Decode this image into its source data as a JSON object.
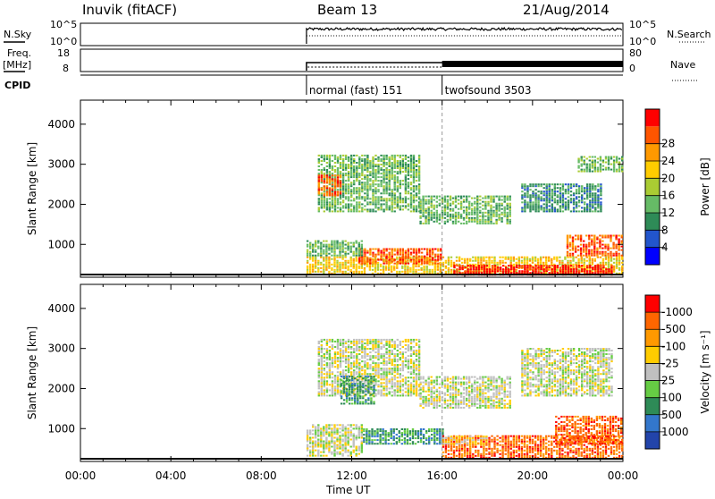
{
  "header": {
    "station": "Inuvik (fitACF)",
    "beam": "Beam 13",
    "date": "21/Aug/2014"
  },
  "status_panels": {
    "nsky_label": "N.Sky",
    "nsky_ticks": [
      "10^5",
      "10^0"
    ],
    "nsearch_label": "N.Search",
    "freq_label_1": "Freq.",
    "freq_label_2": "[MHz]",
    "freq_ticks": [
      "18",
      "8"
    ],
    "nave_ticks": [
      "80",
      "0"
    ],
    "nave_label": "Nave",
    "cpid_label": "CPID",
    "cpid_modes": [
      {
        "name": "normal (fast) 151",
        "start": "10:00"
      },
      {
        "name": "twofsound 3503",
        "start": "16:00"
      }
    ]
  },
  "chart_data": [
    {
      "type": "heatmap",
      "quantity": "Power",
      "ylabel": "Slant Range [km]",
      "ylim": [
        180,
        4600
      ],
      "yticks": [
        1000,
        2000,
        3000,
        4000
      ],
      "x_range_hours": [
        0,
        24
      ],
      "colorbar": {
        "label": "Power [dB]",
        "ticks": [
          "4",
          "8",
          "12",
          "16",
          "20",
          "24",
          "28"
        ],
        "colors": [
          "#0000ff",
          "#2255cc",
          "#2e8b57",
          "#66bb66",
          "#aacc33",
          "#ffcc00",
          "#ff9900",
          "#ff5500",
          "#ff0000"
        ]
      },
      "echo_regions": [
        {
          "t0": 10.0,
          "t1": 24.0,
          "r0": 250,
          "r1": 700,
          "level": 5
        },
        {
          "t0": 16.5,
          "t1": 23.5,
          "r0": 220,
          "r1": 480,
          "level": 8
        },
        {
          "t0": 12.3,
          "t1": 16.0,
          "r0": 500,
          "r1": 900,
          "level": 7
        },
        {
          "t0": 10.0,
          "t1": 12.5,
          "r0": 700,
          "r1": 1100,
          "level": 3
        },
        {
          "t0": 21.5,
          "t1": 24.0,
          "r0": 700,
          "r1": 1200,
          "level": 7
        },
        {
          "t0": 10.5,
          "t1": 15.0,
          "r0": 1800,
          "r1": 3200,
          "level": 3
        },
        {
          "t0": 15.0,
          "t1": 19.0,
          "r0": 1500,
          "r1": 2200,
          "level": 3
        },
        {
          "t0": 19.5,
          "t1": 23.0,
          "r0": 1800,
          "r1": 2500,
          "level": 2
        },
        {
          "t0": 22.0,
          "t1": 24.0,
          "r0": 2800,
          "r1": 3200,
          "level": 3
        },
        {
          "t0": 10.5,
          "t1": 11.5,
          "r0": 2200,
          "r1": 2700,
          "level": 7
        }
      ]
    },
    {
      "type": "heatmap",
      "quantity": "Velocity",
      "ylabel": "Slant Range [km]",
      "ylim": [
        180,
        4600
      ],
      "yticks": [
        1000,
        2000,
        3000,
        4000
      ],
      "xlabel": "Time UT",
      "xticks": [
        "00:00",
        "04:00",
        "08:00",
        "12:00",
        "16:00",
        "20:00",
        "00:00"
      ],
      "colorbar": {
        "label": "Velocity [m s⁻¹]",
        "ticks": [
          "1000",
          "500",
          "100",
          "25",
          "-25",
          "-100",
          "-500",
          "-1000"
        ],
        "colors": [
          "#2244aa",
          "#3377cc",
          "#2e8b57",
          "#66cc44",
          "#c0c0c0",
          "#ffcc00",
          "#ff9900",
          "#ff6600",
          "#ff0000"
        ]
      },
      "echo_regions": [
        {
          "t0": 10.0,
          "t1": 12.5,
          "r0": 300,
          "r1": 1100,
          "level": 4
        },
        {
          "t0": 12.5,
          "t1": 16.0,
          "r0": 600,
          "r1": 1000,
          "level": 2
        },
        {
          "t0": 16.0,
          "t1": 24.0,
          "r0": 250,
          "r1": 800,
          "level": 7
        },
        {
          "t0": 21.0,
          "t1": 24.0,
          "r0": 600,
          "r1": 1300,
          "level": 7
        },
        {
          "t0": 10.5,
          "t1": 15.0,
          "r0": 1800,
          "r1": 3200,
          "level": 4
        },
        {
          "t0": 15.0,
          "t1": 19.0,
          "r0": 1500,
          "r1": 2300,
          "level": 4
        },
        {
          "t0": 11.5,
          "t1": 13.0,
          "r0": 1600,
          "r1": 2300,
          "level": 2
        },
        {
          "t0": 19.5,
          "t1": 23.5,
          "r0": 1800,
          "r1": 3000,
          "level": 4
        },
        {
          "t0": 16.0,
          "t1": 18.0,
          "r0": 600,
          "r1": 800,
          "level": 5
        }
      ]
    }
  ]
}
